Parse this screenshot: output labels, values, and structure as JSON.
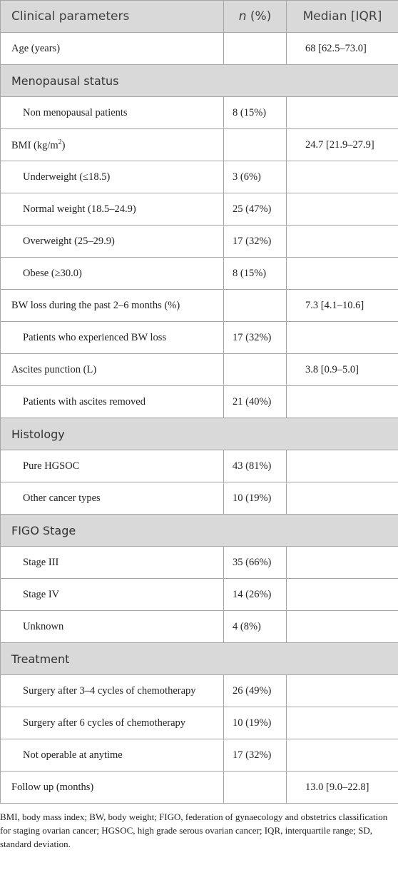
{
  "header": {
    "columns": [
      "Clinical parameters",
      {
        "italic": "n",
        "rest": "(%)"
      },
      "Median [IQR]"
    ]
  },
  "table": {
    "rows": [
      {
        "label": "Age (years)",
        "median": "68 [62.5–73.0]"
      },
      {
        "section": "Menopausal status"
      },
      {
        "label": "Non menopausal patients",
        "n": "8 (15%)",
        "indent": true
      },
      {
        "label": "BMI (kg/m",
        "sup": "2",
        "label_end": ")",
        "median": "24.7 [21.9–27.9]"
      },
      {
        "label": "Underweight (≤18.5)",
        "n": "3 (6%)",
        "indent": true
      },
      {
        "label": "Normal weight (18.5–24.9)",
        "n": "25 (47%)",
        "indent": true
      },
      {
        "label": "Overweight (25–29.9)",
        "n": "17 (32%)",
        "indent": true
      },
      {
        "label": "Obese (≥30.0)",
        "n": "8 (15%)",
        "indent": true
      },
      {
        "label": "BW loss during the past 2–6 months (%)",
        "median": "7.3 [4.1–10.6]"
      },
      {
        "label": "Patients who experienced BW loss",
        "n": "17 (32%)",
        "indent": true
      },
      {
        "label": "Ascites punction (L)",
        "median": "3.8 [0.9–5.0]"
      },
      {
        "label": "Patients with ascites removed",
        "n": "21 (40%)",
        "indent": true
      },
      {
        "section": "Histology"
      },
      {
        "label": "Pure HGSOC",
        "n": "43 (81%)",
        "indent": true
      },
      {
        "label": "Other cancer types",
        "n": "10 (19%)",
        "indent": true
      },
      {
        "section": "FIGO Stage"
      },
      {
        "label": "Stage III",
        "n": "35 (66%)",
        "indent": true
      },
      {
        "label": "Stage IV",
        "n": "14 (26%)",
        "indent": true
      },
      {
        "label": "Unknown",
        "n": "4 (8%)",
        "indent": true
      },
      {
        "section": "Treatment"
      },
      {
        "label": "Surgery after 3–4 cycles of chemotherapy",
        "n": "26 (49%)",
        "indent": true
      },
      {
        "label": "Surgery after 6 cycles of chemotherapy",
        "n": "10 (19%)",
        "indent": true
      },
      {
        "label": "Not operable at anytime",
        "n": "17 (32%)",
        "indent": true
      },
      {
        "label": "Follow up (months)",
        "median": "13.0 [9.0–22.8]"
      }
    ]
  },
  "footnote": "BMI, body mass index; BW, body weight; FIGO, federation of gynaecology and obstetrics classification for staging ovarian cancer; HGSOC, high grade serous ovarian cancer; IQR, interquartile range; SD, standard deviation."
}
